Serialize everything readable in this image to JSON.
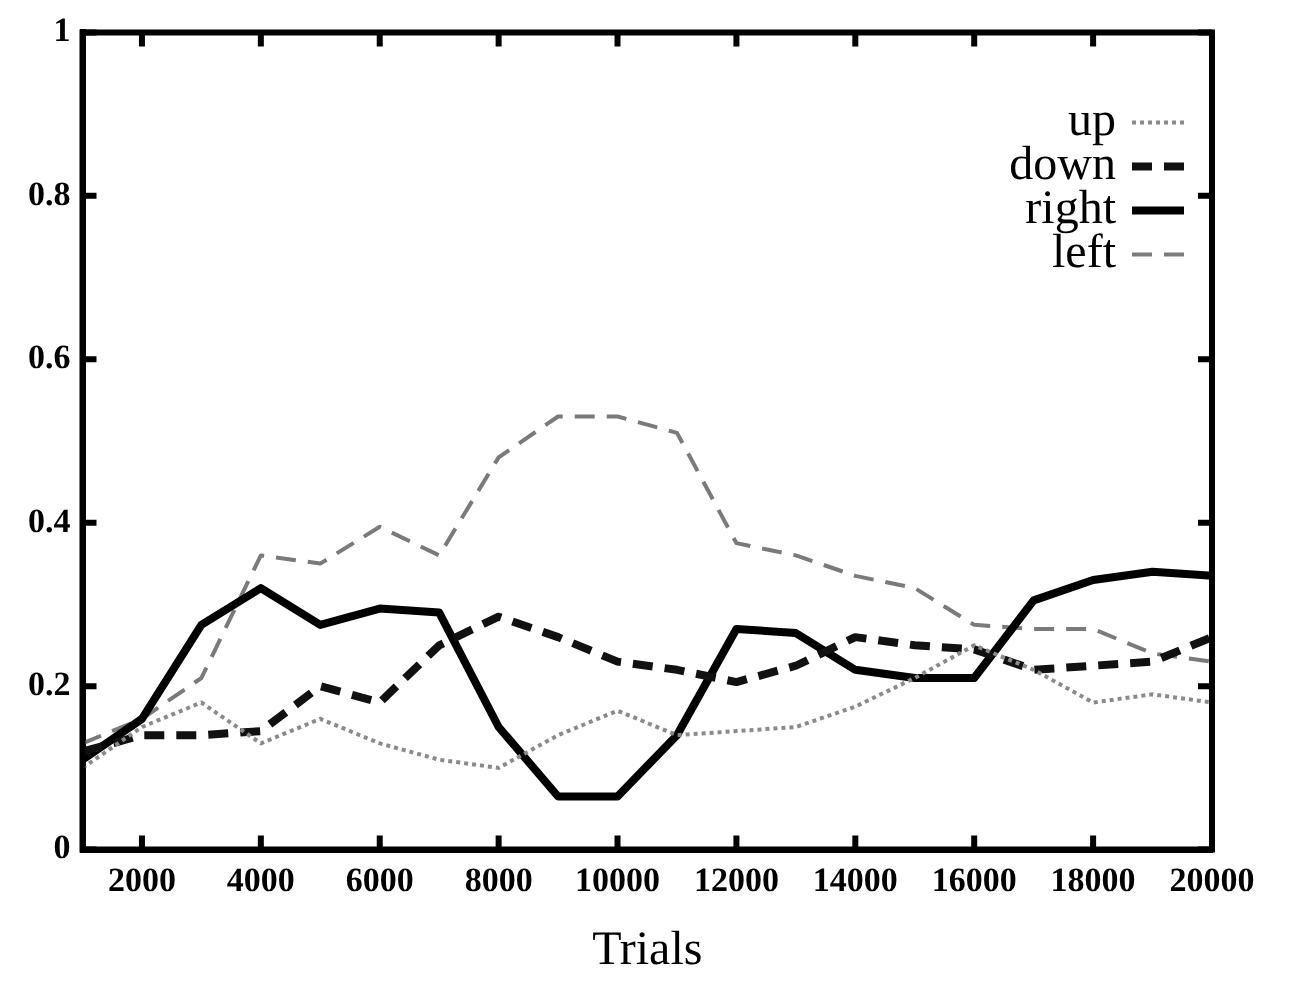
{
  "chart_data": {
    "type": "line",
    "xlabel": "Trials",
    "x": [
      1000,
      2000,
      3000,
      4000,
      5000,
      6000,
      7000,
      8000,
      9000,
      10000,
      11000,
      12000,
      13000,
      14000,
      15000,
      16000,
      17000,
      18000,
      19000,
      20000
    ],
    "series": [
      {
        "name": "up",
        "color": "#8a8a8a",
        "line_style": "dotted",
        "values": [
          0.1,
          0.15,
          0.18,
          0.13,
          0.16,
          0.13,
          0.11,
          0.1,
          0.14,
          0.17,
          0.14,
          0.145,
          0.15,
          0.175,
          0.21,
          0.25,
          0.22,
          0.18,
          0.19,
          0.18
        ]
      },
      {
        "name": "down",
        "color": "#111111",
        "line_style": "dashed",
        "values": [
          0.12,
          0.14,
          0.14,
          0.145,
          0.2,
          0.18,
          0.25,
          0.285,
          0.26,
          0.23,
          0.22,
          0.205,
          0.225,
          0.26,
          0.25,
          0.245,
          0.22,
          0.225,
          0.23,
          0.26
        ]
      },
      {
        "name": "right",
        "color": "#000000",
        "line_style": "solid",
        "values": [
          0.11,
          0.16,
          0.275,
          0.32,
          0.275,
          0.295,
          0.29,
          0.15,
          0.065,
          0.065,
          0.14,
          0.27,
          0.265,
          0.22,
          0.21,
          0.21,
          0.305,
          0.33,
          0.34,
          0.335
        ]
      },
      {
        "name": "left",
        "color": "#7a7a7a",
        "line_style": "dashed",
        "values": [
          0.13,
          0.16,
          0.21,
          0.36,
          0.35,
          0.395,
          0.36,
          0.48,
          0.53,
          0.53,
          0.51,
          0.375,
          0.36,
          0.335,
          0.32,
          0.275,
          0.27,
          0.27,
          0.24,
          0.23
        ]
      }
    ],
    "xlim": [
      1000,
      20000
    ],
    "xticks": [
      2000,
      4000,
      6000,
      8000,
      10000,
      12000,
      14000,
      16000,
      18000,
      20000
    ],
    "ylim": [
      0,
      1
    ],
    "yticks": [
      0,
      0.2,
      0.4,
      0.6,
      0.8,
      1
    ],
    "grid": false,
    "legend": "top right",
    "marker": "none"
  }
}
